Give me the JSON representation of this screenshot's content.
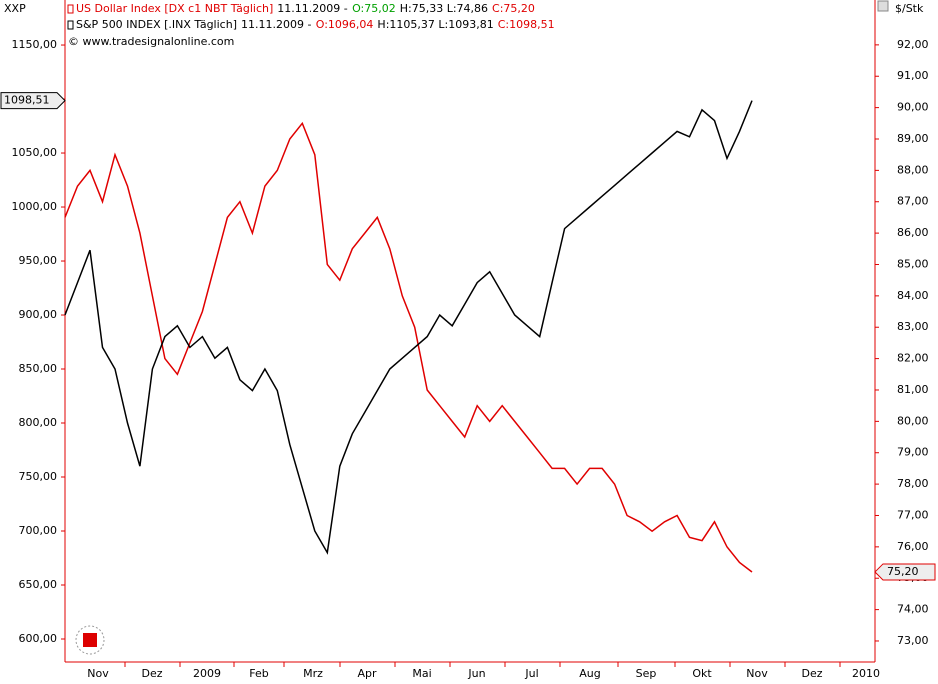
{
  "chart_data": {
    "type": "line",
    "corner_left": "XXP",
    "corner_right": "$/Stk",
    "copyright": "© www.tradesignalonline.com",
    "x_labels": [
      "Nov",
      "Dez",
      "2009",
      "Feb",
      "Mrz",
      "Apr",
      "Mai",
      "Jun",
      "Jul",
      "Aug",
      "Sep",
      "Okt",
      "Nov",
      "Dez",
      "2010"
    ],
    "ylim": [
      578.7,
      1191.7
    ],
    "yticks": [
      {
        "value": 600,
        "label": "600,00"
      },
      {
        "value": 650,
        "label": "650,00"
      },
      {
        "value": 700,
        "label": "700,00"
      },
      {
        "value": 750,
        "label": "750,00"
      },
      {
        "value": 800,
        "label": "800,00"
      },
      {
        "value": 850,
        "label": "850,00"
      },
      {
        "value": 900,
        "label": "900,00"
      },
      {
        "value": 950,
        "label": "950,00"
      },
      {
        "value": 1000,
        "label": "1000,00"
      },
      {
        "value": 1050,
        "label": "1050,00"
      },
      {
        "value": 1100,
        "label": "1100,00"
      },
      {
        "value": 1150,
        "label": "1150,00"
      }
    ],
    "y2lim": [
      72.33,
      93.43
    ],
    "y2ticks": [
      {
        "value": 73,
        "label": "73,00"
      },
      {
        "value": 74,
        "label": "74,00"
      },
      {
        "value": 75,
        "label": "75,00"
      },
      {
        "value": 76,
        "label": "76,00"
      },
      {
        "value": 77,
        "label": "77,00"
      },
      {
        "value": 78,
        "label": "78,00"
      },
      {
        "value": 79,
        "label": "79,00"
      },
      {
        "value": 80,
        "label": "80,00"
      },
      {
        "value": 81,
        "label": "81,00"
      },
      {
        "value": 82,
        "label": "82,00"
      },
      {
        "value": 83,
        "label": "83,00"
      },
      {
        "value": 84,
        "label": "84,00"
      },
      {
        "value": 85,
        "label": "85,00"
      },
      {
        "value": 86,
        "label": "86,00"
      },
      {
        "value": 87,
        "label": "87,00"
      },
      {
        "value": 88,
        "label": "88,00"
      },
      {
        "value": 89,
        "label": "89,00"
      },
      {
        "value": 90,
        "label": "90,00"
      },
      {
        "value": 91,
        "label": "91,00"
      },
      {
        "value": 92,
        "label": "92,00"
      }
    ],
    "series": [
      {
        "name": "US Dollar Index [DX c1 NBT  Täglich]",
        "color": "#e00000",
        "axis": "y2",
        "info": [
          {
            "text": "11.11.2009 -",
            "color": "#000000"
          },
          {
            "text": "O:75,02",
            "color": "#00a000"
          },
          {
            "text": "H:75,33 L:74,86",
            "color": "#000000"
          },
          {
            "text": "C:75,20",
            "color": "#e00000"
          }
        ],
        "last_label": "75,20",
        "values": [
          86.5,
          87.5,
          88,
          87,
          88.5,
          87.5,
          86,
          84,
          82,
          81.5,
          82.5,
          83.5,
          85,
          86.5,
          87,
          86,
          87.5,
          88,
          89,
          89.5,
          88.5,
          85,
          84.5,
          85.5,
          86,
          86.5,
          85.5,
          84,
          83,
          81,
          80.5,
          80,
          79.5,
          80.5,
          80,
          80.5,
          80,
          79.5,
          79,
          78.5,
          78.5,
          78,
          78.5,
          78.5,
          78,
          77,
          76.8,
          76.5,
          76.8,
          77,
          76.3,
          76.2,
          76.8,
          76,
          75.5,
          75.2
        ]
      },
      {
        "name": "S&P 500 INDEX [.INX  Täglich]",
        "color": "#000000",
        "axis": "y",
        "info": [
          {
            "text": "11.11.2009 -",
            "color": "#000000"
          },
          {
            "text": "O:1096,04",
            "color": "#e00000"
          },
          {
            "text": "H:1105,37 L:1093,81",
            "color": "#000000"
          },
          {
            "text": "C:1098,51",
            "color": "#e00000"
          }
        ],
        "last_label": "1098,51",
        "values": [
          900,
          930,
          960,
          870,
          850,
          800,
          760,
          850,
          880,
          890,
          870,
          880,
          860,
          870,
          840,
          830,
          850,
          830,
          780,
          740,
          700,
          680,
          760,
          790,
          810,
          830,
          850,
          860,
          870,
          880,
          900,
          890,
          910,
          930,
          940,
          920,
          900,
          890,
          880,
          930,
          980,
          990,
          1000,
          1010,
          1020,
          1030,
          1040,
          1050,
          1060,
          1070,
          1065,
          1090,
          1080,
          1045,
          1070,
          1098.51
        ]
      }
    ]
  }
}
